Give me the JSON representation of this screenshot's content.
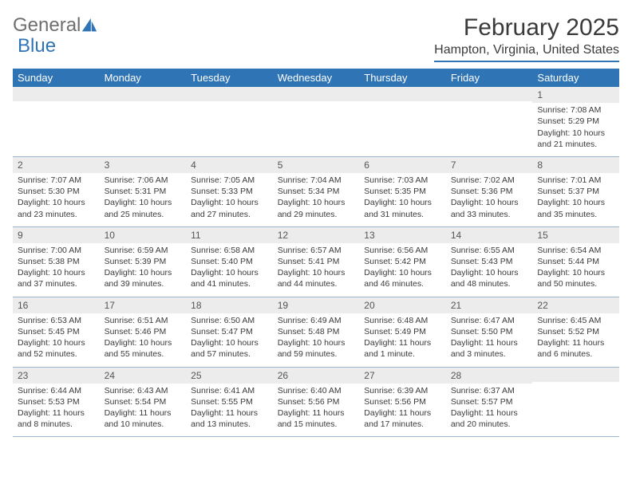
{
  "brand": {
    "part1": "General",
    "part2": "Blue"
  },
  "title": "February 2025",
  "location": "Hampton, Virginia, United States",
  "colors": {
    "header_bg": "#2f74b5",
    "header_text": "#ffffff",
    "row_divider": "#9fb7ce",
    "daynum_bg": "#ececec",
    "text": "#3a3a3a",
    "logo_gray": "#6f6f6f",
    "logo_blue": "#2f74b5"
  },
  "day_names": [
    "Sunday",
    "Monday",
    "Tuesday",
    "Wednesday",
    "Thursday",
    "Friday",
    "Saturday"
  ],
  "weeks": [
    [
      {
        "day": "",
        "sunrise": "",
        "sunset": "",
        "daylight": ""
      },
      {
        "day": "",
        "sunrise": "",
        "sunset": "",
        "daylight": ""
      },
      {
        "day": "",
        "sunrise": "",
        "sunset": "",
        "daylight": ""
      },
      {
        "day": "",
        "sunrise": "",
        "sunset": "",
        "daylight": ""
      },
      {
        "day": "",
        "sunrise": "",
        "sunset": "",
        "daylight": ""
      },
      {
        "day": "",
        "sunrise": "",
        "sunset": "",
        "daylight": ""
      },
      {
        "day": "1",
        "sunrise": "Sunrise: 7:08 AM",
        "sunset": "Sunset: 5:29 PM",
        "daylight": "Daylight: 10 hours and 21 minutes."
      }
    ],
    [
      {
        "day": "2",
        "sunrise": "Sunrise: 7:07 AM",
        "sunset": "Sunset: 5:30 PM",
        "daylight": "Daylight: 10 hours and 23 minutes."
      },
      {
        "day": "3",
        "sunrise": "Sunrise: 7:06 AM",
        "sunset": "Sunset: 5:31 PM",
        "daylight": "Daylight: 10 hours and 25 minutes."
      },
      {
        "day": "4",
        "sunrise": "Sunrise: 7:05 AM",
        "sunset": "Sunset: 5:33 PM",
        "daylight": "Daylight: 10 hours and 27 minutes."
      },
      {
        "day": "5",
        "sunrise": "Sunrise: 7:04 AM",
        "sunset": "Sunset: 5:34 PM",
        "daylight": "Daylight: 10 hours and 29 minutes."
      },
      {
        "day": "6",
        "sunrise": "Sunrise: 7:03 AM",
        "sunset": "Sunset: 5:35 PM",
        "daylight": "Daylight: 10 hours and 31 minutes."
      },
      {
        "day": "7",
        "sunrise": "Sunrise: 7:02 AM",
        "sunset": "Sunset: 5:36 PM",
        "daylight": "Daylight: 10 hours and 33 minutes."
      },
      {
        "day": "8",
        "sunrise": "Sunrise: 7:01 AM",
        "sunset": "Sunset: 5:37 PM",
        "daylight": "Daylight: 10 hours and 35 minutes."
      }
    ],
    [
      {
        "day": "9",
        "sunrise": "Sunrise: 7:00 AM",
        "sunset": "Sunset: 5:38 PM",
        "daylight": "Daylight: 10 hours and 37 minutes."
      },
      {
        "day": "10",
        "sunrise": "Sunrise: 6:59 AM",
        "sunset": "Sunset: 5:39 PM",
        "daylight": "Daylight: 10 hours and 39 minutes."
      },
      {
        "day": "11",
        "sunrise": "Sunrise: 6:58 AM",
        "sunset": "Sunset: 5:40 PM",
        "daylight": "Daylight: 10 hours and 41 minutes."
      },
      {
        "day": "12",
        "sunrise": "Sunrise: 6:57 AM",
        "sunset": "Sunset: 5:41 PM",
        "daylight": "Daylight: 10 hours and 44 minutes."
      },
      {
        "day": "13",
        "sunrise": "Sunrise: 6:56 AM",
        "sunset": "Sunset: 5:42 PM",
        "daylight": "Daylight: 10 hours and 46 minutes."
      },
      {
        "day": "14",
        "sunrise": "Sunrise: 6:55 AM",
        "sunset": "Sunset: 5:43 PM",
        "daylight": "Daylight: 10 hours and 48 minutes."
      },
      {
        "day": "15",
        "sunrise": "Sunrise: 6:54 AM",
        "sunset": "Sunset: 5:44 PM",
        "daylight": "Daylight: 10 hours and 50 minutes."
      }
    ],
    [
      {
        "day": "16",
        "sunrise": "Sunrise: 6:53 AM",
        "sunset": "Sunset: 5:45 PM",
        "daylight": "Daylight: 10 hours and 52 minutes."
      },
      {
        "day": "17",
        "sunrise": "Sunrise: 6:51 AM",
        "sunset": "Sunset: 5:46 PM",
        "daylight": "Daylight: 10 hours and 55 minutes."
      },
      {
        "day": "18",
        "sunrise": "Sunrise: 6:50 AM",
        "sunset": "Sunset: 5:47 PM",
        "daylight": "Daylight: 10 hours and 57 minutes."
      },
      {
        "day": "19",
        "sunrise": "Sunrise: 6:49 AM",
        "sunset": "Sunset: 5:48 PM",
        "daylight": "Daylight: 10 hours and 59 minutes."
      },
      {
        "day": "20",
        "sunrise": "Sunrise: 6:48 AM",
        "sunset": "Sunset: 5:49 PM",
        "daylight": "Daylight: 11 hours and 1 minute."
      },
      {
        "day": "21",
        "sunrise": "Sunrise: 6:47 AM",
        "sunset": "Sunset: 5:50 PM",
        "daylight": "Daylight: 11 hours and 3 minutes."
      },
      {
        "day": "22",
        "sunrise": "Sunrise: 6:45 AM",
        "sunset": "Sunset: 5:52 PM",
        "daylight": "Daylight: 11 hours and 6 minutes."
      }
    ],
    [
      {
        "day": "23",
        "sunrise": "Sunrise: 6:44 AM",
        "sunset": "Sunset: 5:53 PM",
        "daylight": "Daylight: 11 hours and 8 minutes."
      },
      {
        "day": "24",
        "sunrise": "Sunrise: 6:43 AM",
        "sunset": "Sunset: 5:54 PM",
        "daylight": "Daylight: 11 hours and 10 minutes."
      },
      {
        "day": "25",
        "sunrise": "Sunrise: 6:41 AM",
        "sunset": "Sunset: 5:55 PM",
        "daylight": "Daylight: 11 hours and 13 minutes."
      },
      {
        "day": "26",
        "sunrise": "Sunrise: 6:40 AM",
        "sunset": "Sunset: 5:56 PM",
        "daylight": "Daylight: 11 hours and 15 minutes."
      },
      {
        "day": "27",
        "sunrise": "Sunrise: 6:39 AM",
        "sunset": "Sunset: 5:56 PM",
        "daylight": "Daylight: 11 hours and 17 minutes."
      },
      {
        "day": "28",
        "sunrise": "Sunrise: 6:37 AM",
        "sunset": "Sunset: 5:57 PM",
        "daylight": "Daylight: 11 hours and 20 minutes."
      },
      {
        "day": "",
        "sunrise": "",
        "sunset": "",
        "daylight": ""
      }
    ]
  ]
}
